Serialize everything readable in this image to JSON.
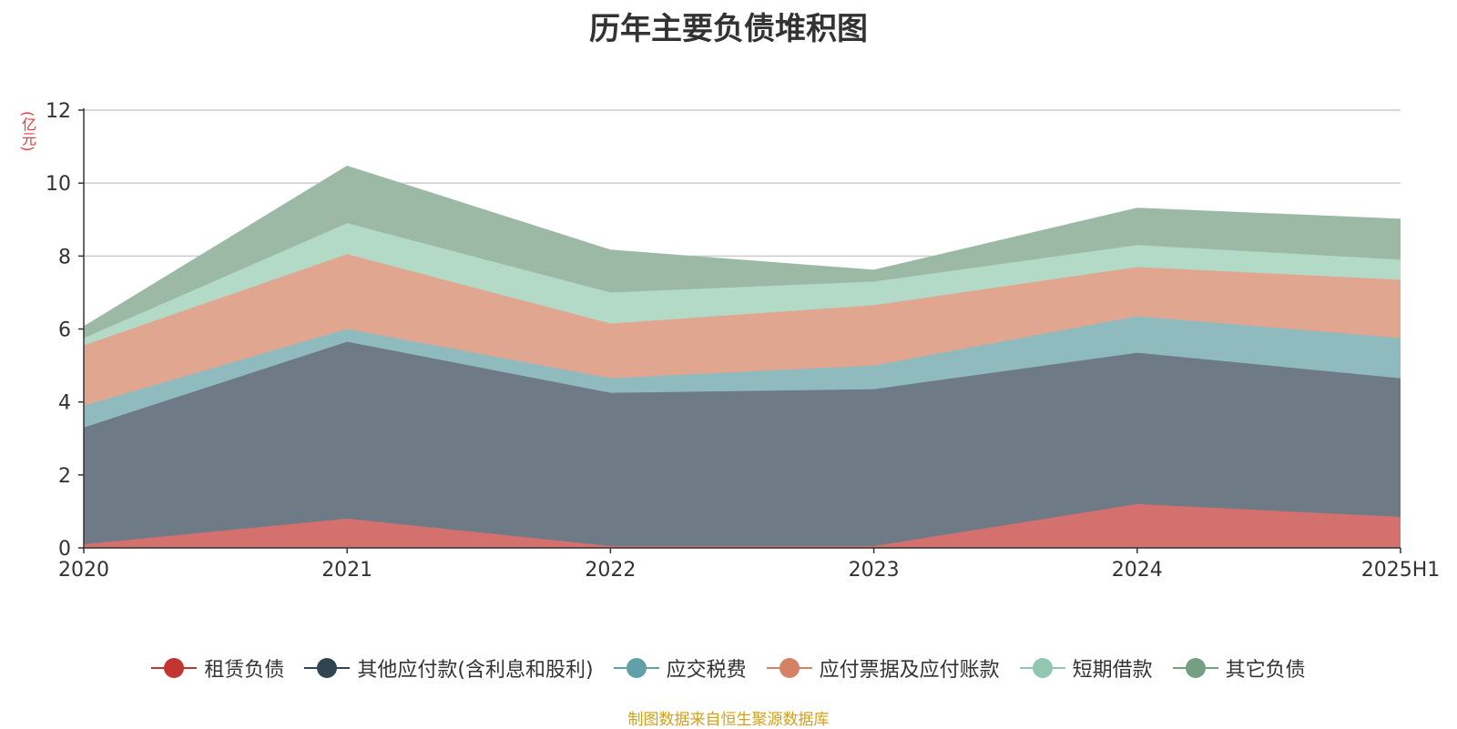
{
  "chart_data": {
    "type": "area",
    "stacked": true,
    "title": "历年主要负债堆积图",
    "ylabel": "(亿元)",
    "ylim": [
      0,
      12
    ],
    "yticks": [
      0,
      2,
      4,
      6,
      8,
      10,
      12
    ],
    "categories": [
      "2020",
      "2021",
      "2022",
      "2023",
      "2024",
      "2025H1"
    ],
    "series": [
      {
        "name": "租赁负债",
        "color": "#c23531",
        "fill": "#d4716e",
        "values": [
          0.1,
          0.8,
          0.05,
          0.05,
          1.2,
          0.85
        ]
      },
      {
        "name": "其他应付款(含利息和股利)",
        "color": "#2f4554",
        "fill": "#6e7b86",
        "values": [
          3.2,
          4.85,
          4.2,
          4.3,
          4.15,
          3.8
        ]
      },
      {
        "name": "应交税费",
        "color": "#61a0a8",
        "fill": "#8fbbbf",
        "values": [
          0.6,
          0.35,
          0.4,
          0.65,
          1.0,
          1.1
        ]
      },
      {
        "name": "应付票据及应付账款",
        "color": "#d48265",
        "fill": "#e0a690",
        "values": [
          1.65,
          2.05,
          1.5,
          1.65,
          1.35,
          1.6
        ]
      },
      {
        "name": "短期借款",
        "color": "#91c7ae",
        "fill": "#b3d9c7",
        "values": [
          0.2,
          0.85,
          0.85,
          0.65,
          0.6,
          0.55
        ]
      },
      {
        "name": "其它负债",
        "color": "#749f83",
        "fill": "#9cb9a6",
        "values": [
          0.3,
          1.55,
          1.15,
          0.3,
          1.0,
          1.1
        ]
      }
    ],
    "legend": "bottom",
    "grid": true
  },
  "source_note": "制图数据来自恒生聚源数据库"
}
